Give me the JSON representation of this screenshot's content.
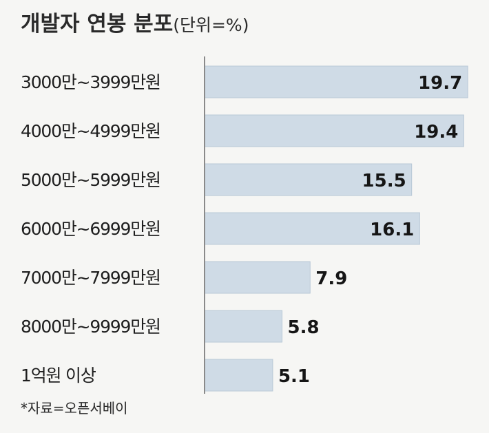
{
  "chart_data": {
    "type": "bar",
    "orientation": "horizontal",
    "title": "개발자 연봉 분포",
    "unit": "(단위=%)",
    "categories": [
      "3000만~3999만원",
      "4000만~4999만원",
      "5000만~5999만원",
      "6000만~6999만원",
      "7000만~7999만원",
      "8000만~9999만원",
      "1억원 이상"
    ],
    "values": [
      19.7,
      19.4,
      15.5,
      16.1,
      7.9,
      5.8,
      5.1
    ],
    "value_labels": [
      "19.7",
      "19.4",
      "15.5",
      "16.1",
      "7.9",
      "5.8",
      "5.1"
    ],
    "xlim": [
      0,
      20
    ],
    "grid": false,
    "legend": "none",
    "colors": {
      "bar": "#cfdbe6",
      "bar_border": "#b8c8d6",
      "text": "#1c1c1c",
      "background": "#f6f6f4"
    }
  },
  "source_note": "*자료=오픈서베이"
}
